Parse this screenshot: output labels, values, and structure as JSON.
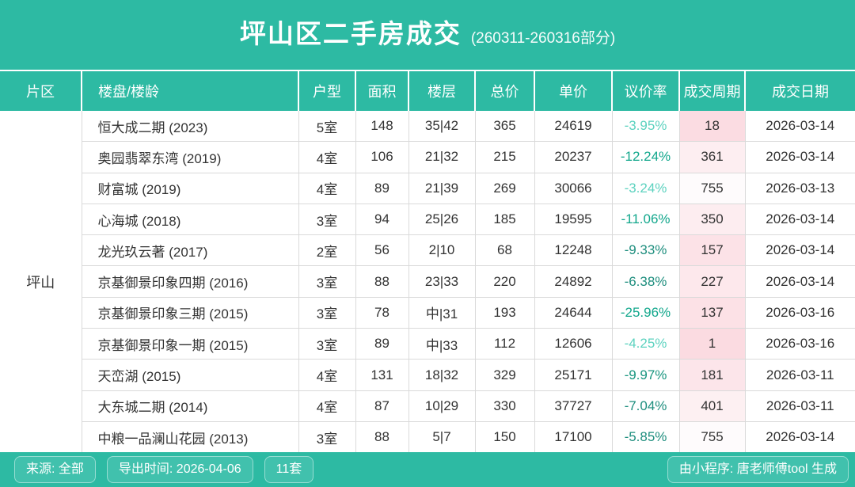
{
  "title": {
    "main": "坪山区二手房成交",
    "sub": "(260311-260316部分)"
  },
  "colors": {
    "teal_band": "#2dbaa3",
    "chip_bg": "#41c1ad",
    "grid_line": "#dadada",
    "cell_text": "#333333",
    "header_text": "#ffffff",
    "rate_light": "#5cd2bf",
    "rate_vivid": "#12a78c",
    "rate_dark": "#1e8e7e",
    "cycle_hot_pink": "#fbdbe1"
  },
  "table": {
    "region": "坪山",
    "columns": [
      "片区",
      "楼盘/楼龄",
      "户型",
      "面积",
      "楼层",
      "总价",
      "单价",
      "议价率",
      "成交周期",
      "成交日期"
    ],
    "rows": [
      {
        "name": "恒大成二期 (2023)",
        "unit": "5室",
        "area": "148",
        "floor": "35|42",
        "total": "365",
        "price": "24619",
        "rate": "-3.95%",
        "rate_color": "#5cd2bf",
        "cycle": "18",
        "cycle_bg": "#fbdce2",
        "date": "2026-03-14"
      },
      {
        "name": "奥园翡翠东湾 (2019)",
        "unit": "4室",
        "area": "106",
        "floor": "21|32",
        "total": "215",
        "price": "20237",
        "rate": "-12.24%",
        "rate_color": "#12a78c",
        "cycle": "361",
        "cycle_bg": "#fdeef1",
        "date": "2026-03-14"
      },
      {
        "name": "财富城 (2019)",
        "unit": "4室",
        "area": "89",
        "floor": "21|39",
        "total": "269",
        "price": "30066",
        "rate": "-3.24%",
        "rate_color": "#5cd2bf",
        "cycle": "755",
        "cycle_bg": "#fefbfc",
        "date": "2026-03-13"
      },
      {
        "name": "心海城 (2018)",
        "unit": "3室",
        "area": "94",
        "floor": "25|26",
        "total": "185",
        "price": "19595",
        "rate": "-11.06%",
        "rate_color": "#12a78c",
        "cycle": "350",
        "cycle_bg": "#fdedf0",
        "date": "2026-03-14"
      },
      {
        "name": "龙光玖云著 (2017)",
        "unit": "2室",
        "area": "56",
        "floor": "2|10",
        "total": "68",
        "price": "12248",
        "rate": "-9.33%",
        "rate_color": "#1e8e7e",
        "cycle": "157",
        "cycle_bg": "#fce2e7",
        "date": "2026-03-14"
      },
      {
        "name": "京基御景印象四期 (2016)",
        "unit": "3室",
        "area": "88",
        "floor": "23|33",
        "total": "220",
        "price": "24892",
        "rate": "-6.38%",
        "rate_color": "#1e8e7e",
        "cycle": "227",
        "cycle_bg": "#fde8ec",
        "date": "2026-03-14"
      },
      {
        "name": "京基御景印象三期 (2015)",
        "unit": "3室",
        "area": "78",
        "floor": "中|31",
        "total": "193",
        "price": "24644",
        "rate": "-25.96%",
        "rate_color": "#12a78c",
        "cycle": "137",
        "cycle_bg": "#fce1e6",
        "date": "2026-03-16"
      },
      {
        "name": "京基御景印象一期 (2015)",
        "unit": "3室",
        "area": "89",
        "floor": "中|33",
        "total": "112",
        "price": "12606",
        "rate": "-4.25%",
        "rate_color": "#5cd2bf",
        "cycle": "1",
        "cycle_bg": "#fbdbe1",
        "date": "2026-03-16"
      },
      {
        "name": "天峦湖 (2015)",
        "unit": "4室",
        "area": "131",
        "floor": "18|32",
        "total": "329",
        "price": "25171",
        "rate": "-9.97%",
        "rate_color": "#18957f",
        "cycle": "181",
        "cycle_bg": "#fce5ea",
        "date": "2026-03-11"
      },
      {
        "name": "大东城二期 (2014)",
        "unit": "4室",
        "area": "87",
        "floor": "10|29",
        "total": "330",
        "price": "37727",
        "rate": "-7.04%",
        "rate_color": "#1e8e7e",
        "cycle": "401",
        "cycle_bg": "#fdf0f2",
        "date": "2026-03-11"
      },
      {
        "name": "中粮一品澜山花园 (2013)",
        "unit": "3室",
        "area": "88",
        "floor": "5|7",
        "total": "150",
        "price": "17100",
        "rate": "-5.85%",
        "rate_color": "#1e8e7e",
        "cycle": "755",
        "cycle_bg": "#fefbfc",
        "date": "2026-03-14"
      }
    ]
  },
  "footer": {
    "source": "来源: 全部",
    "export_time": "导出时间: 2026-04-06",
    "count": "11套",
    "generator": "由小程序: 唐老师傅tool 生成"
  }
}
